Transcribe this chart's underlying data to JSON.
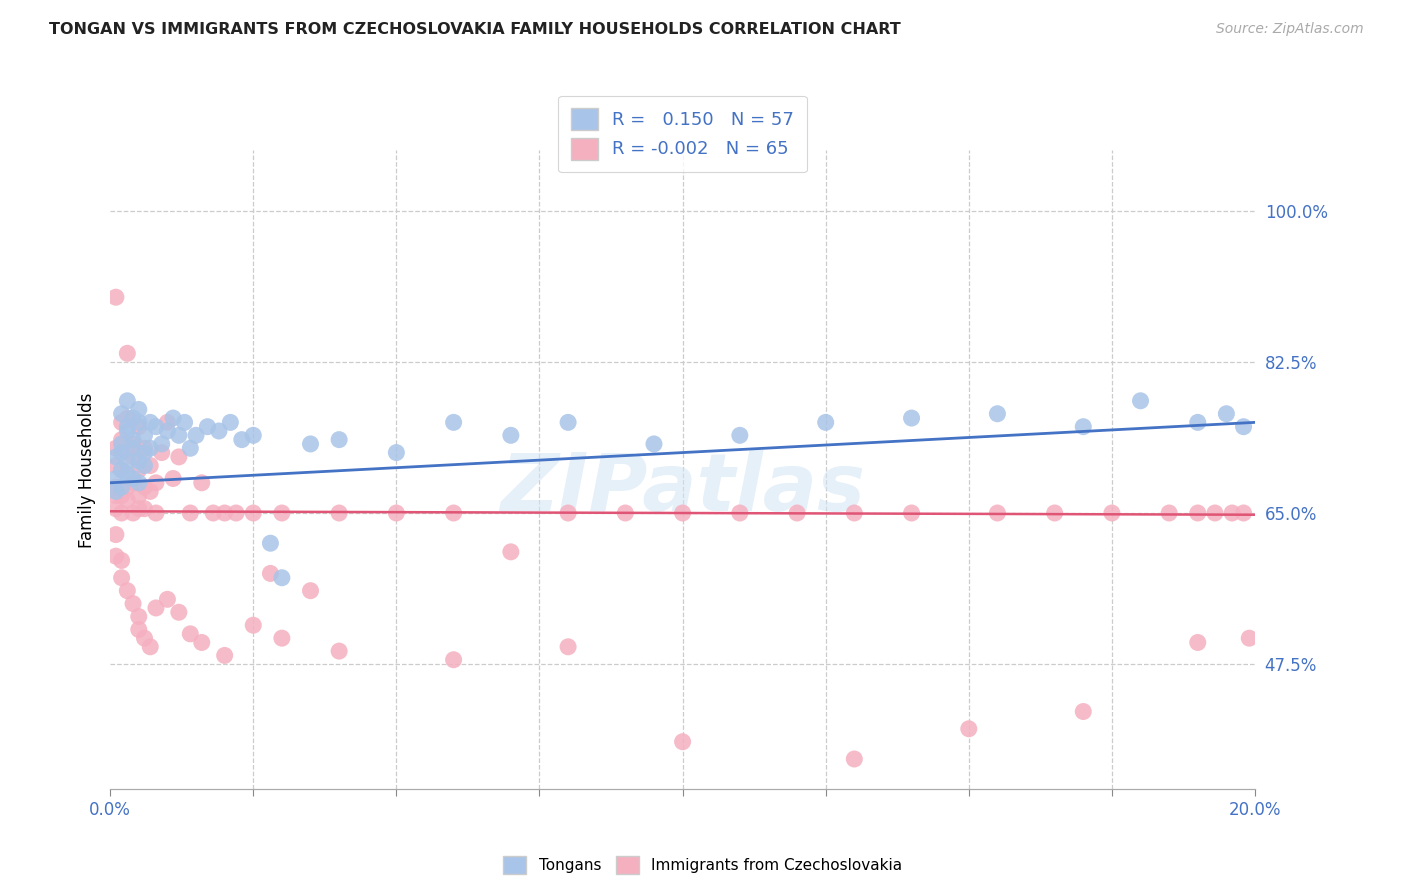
{
  "title": "TONGAN VS IMMIGRANTS FROM CZECHOSLOVAKIA FAMILY HOUSEHOLDS CORRELATION CHART",
  "source": "Source: ZipAtlas.com",
  "ylabel": "Family Households",
  "yticks": [
    47.5,
    65.0,
    82.5,
    100.0
  ],
  "ytick_labels": [
    "47.5%",
    "65.0%",
    "82.5%",
    "100.0%"
  ],
  "xmin": 0.0,
  "xmax": 0.2,
  "ymin": 33.0,
  "ymax": 107.0,
  "blue_R": "0.150",
  "blue_N": "57",
  "pink_R": "-0.002",
  "pink_N": "65",
  "blue_color": "#a8c4e8",
  "pink_color": "#f5b0c0",
  "blue_line_color": "#4472c4",
  "pink_line_color": "#e05575",
  "watermark": "ZIPatlas",
  "blue_scatter_x": [
    0.001,
    0.001,
    0.001,
    0.002,
    0.002,
    0.002,
    0.002,
    0.002,
    0.003,
    0.003,
    0.003,
    0.003,
    0.003,
    0.004,
    0.004,
    0.004,
    0.004,
    0.005,
    0.005,
    0.005,
    0.005,
    0.006,
    0.006,
    0.006,
    0.007,
    0.007,
    0.008,
    0.009,
    0.01,
    0.011,
    0.012,
    0.013,
    0.014,
    0.015,
    0.017,
    0.019,
    0.021,
    0.023,
    0.025,
    0.028,
    0.03,
    0.035,
    0.04,
    0.05,
    0.06,
    0.07,
    0.08,
    0.095,
    0.11,
    0.125,
    0.14,
    0.155,
    0.17,
    0.18,
    0.19,
    0.195,
    0.198
  ],
  "blue_scatter_y": [
    69.0,
    71.5,
    67.5,
    70.0,
    73.0,
    76.5,
    68.0,
    72.0,
    75.0,
    78.0,
    71.0,
    74.5,
    69.5,
    76.0,
    72.5,
    69.0,
    73.5,
    75.5,
    71.0,
    68.5,
    77.0,
    74.0,
    72.0,
    70.5,
    75.5,
    72.5,
    75.0,
    73.0,
    74.5,
    76.0,
    74.0,
    75.5,
    72.5,
    74.0,
    75.0,
    74.5,
    75.5,
    73.5,
    74.0,
    61.5,
    57.5,
    73.0,
    73.5,
    72.0,
    75.5,
    74.0,
    75.5,
    73.0,
    74.0,
    75.5,
    76.0,
    76.5,
    75.0,
    78.0,
    75.5,
    76.5,
    75.0
  ],
  "pink_scatter_x": [
    0.001,
    0.001,
    0.001,
    0.001,
    0.001,
    0.001,
    0.002,
    0.002,
    0.002,
    0.002,
    0.002,
    0.003,
    0.003,
    0.003,
    0.003,
    0.003,
    0.004,
    0.004,
    0.004,
    0.004,
    0.005,
    0.005,
    0.005,
    0.005,
    0.005,
    0.006,
    0.006,
    0.006,
    0.007,
    0.007,
    0.008,
    0.008,
    0.009,
    0.01,
    0.011,
    0.012,
    0.014,
    0.016,
    0.018,
    0.02,
    0.022,
    0.025,
    0.028,
    0.03,
    0.035,
    0.04,
    0.05,
    0.06,
    0.07,
    0.08,
    0.09,
    0.1,
    0.11,
    0.12,
    0.13,
    0.14,
    0.155,
    0.165,
    0.175,
    0.185,
    0.19,
    0.193,
    0.196,
    0.198,
    0.199
  ],
  "pink_scatter_y": [
    67.0,
    70.5,
    65.5,
    68.0,
    72.5,
    90.0,
    67.0,
    70.0,
    65.0,
    73.5,
    75.5,
    68.0,
    72.0,
    66.5,
    83.5,
    76.0,
    68.5,
    71.5,
    65.0,
    73.0,
    67.0,
    70.0,
    65.5,
    72.0,
    75.0,
    68.0,
    65.5,
    72.5,
    67.5,
    70.5,
    65.0,
    68.5,
    72.0,
    75.5,
    69.0,
    71.5,
    65.0,
    68.5,
    65.0,
    65.0,
    65.0,
    65.0,
    58.0,
    65.0,
    56.0,
    65.0,
    65.0,
    65.0,
    60.5,
    65.0,
    65.0,
    65.0,
    65.0,
    65.0,
    65.0,
    65.0,
    65.0,
    65.0,
    65.0,
    65.0,
    65.0,
    65.0,
    65.0,
    65.0,
    50.5
  ],
  "pink_scatter_extra_x": [
    0.001,
    0.001,
    0.002,
    0.002,
    0.003,
    0.004,
    0.005,
    0.005,
    0.006,
    0.007,
    0.008,
    0.01,
    0.012,
    0.014,
    0.016,
    0.02,
    0.025,
    0.03,
    0.04,
    0.06,
    0.08,
    0.1,
    0.13,
    0.15,
    0.17,
    0.19
  ],
  "pink_scatter_extra_y": [
    60.0,
    62.5,
    59.5,
    57.5,
    56.0,
    54.5,
    53.0,
    51.5,
    50.5,
    49.5,
    54.0,
    55.0,
    53.5,
    51.0,
    50.0,
    48.5,
    52.0,
    50.5,
    49.0,
    48.0,
    49.5,
    38.5,
    36.5,
    40.0,
    42.0,
    50.0
  ],
  "blue_line_x": [
    0.0,
    0.2
  ],
  "blue_line_y": [
    68.5,
    75.5
  ],
  "pink_line_x": [
    0.0,
    0.2
  ],
  "pink_line_y": [
    65.2,
    64.8
  ],
  "xtick_positions": [
    0.0,
    0.025,
    0.05,
    0.075,
    0.1,
    0.125,
    0.15,
    0.175,
    0.2
  ],
  "xtick_labels_show": [
    "0.0%",
    "",
    "",
    "",
    "",
    "",
    "",
    "",
    "20.0%"
  ]
}
